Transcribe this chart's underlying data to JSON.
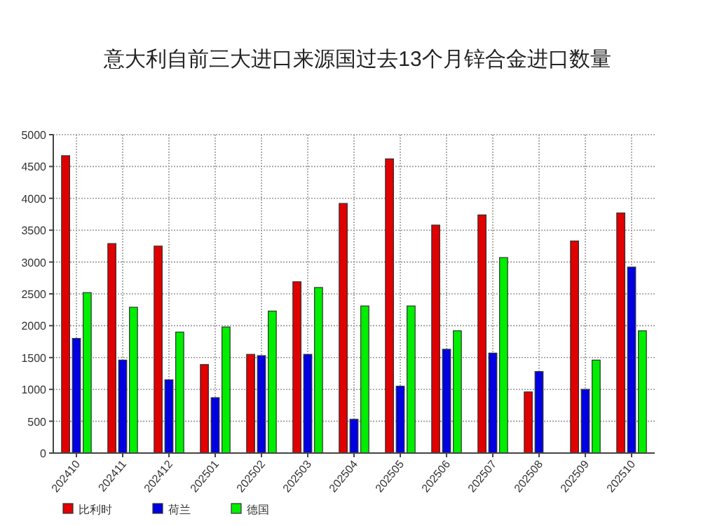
{
  "chart_data": {
    "type": "bar",
    "title": "意大利自前三大进口来源国过去13个月锌合金进口数量",
    "categories": [
      "202410",
      "202411",
      "202412",
      "202501",
      "202502",
      "202503",
      "202504",
      "202505",
      "202506",
      "202507",
      "202508",
      "202509",
      "202510"
    ],
    "series": [
      {
        "name": "比利时",
        "color": "#e00000",
        "values": [
          4670,
          3290,
          3250,
          1390,
          1550,
          2690,
          3920,
          4620,
          3580,
          3740,
          960,
          3330,
          3770
        ]
      },
      {
        "name": "荷兰",
        "color": "#0000e0",
        "values": [
          1800,
          1460,
          1150,
          870,
          1530,
          1550,
          530,
          1050,
          1630,
          1570,
          1280,
          1000,
          2920
        ]
      },
      {
        "name": "德国",
        "color": "#00ee00",
        "values": [
          2520,
          2290,
          1900,
          1980,
          2230,
          2600,
          2310,
          2310,
          1920,
          3070,
          null,
          1460,
          1920
        ]
      }
    ],
    "ylim": [
      0,
      5000
    ],
    "yticks": [
      0,
      500,
      1000,
      1500,
      2000,
      2500,
      3000,
      3500,
      4000,
      4500,
      5000
    ],
    "grid": true,
    "legend": "bottom"
  }
}
